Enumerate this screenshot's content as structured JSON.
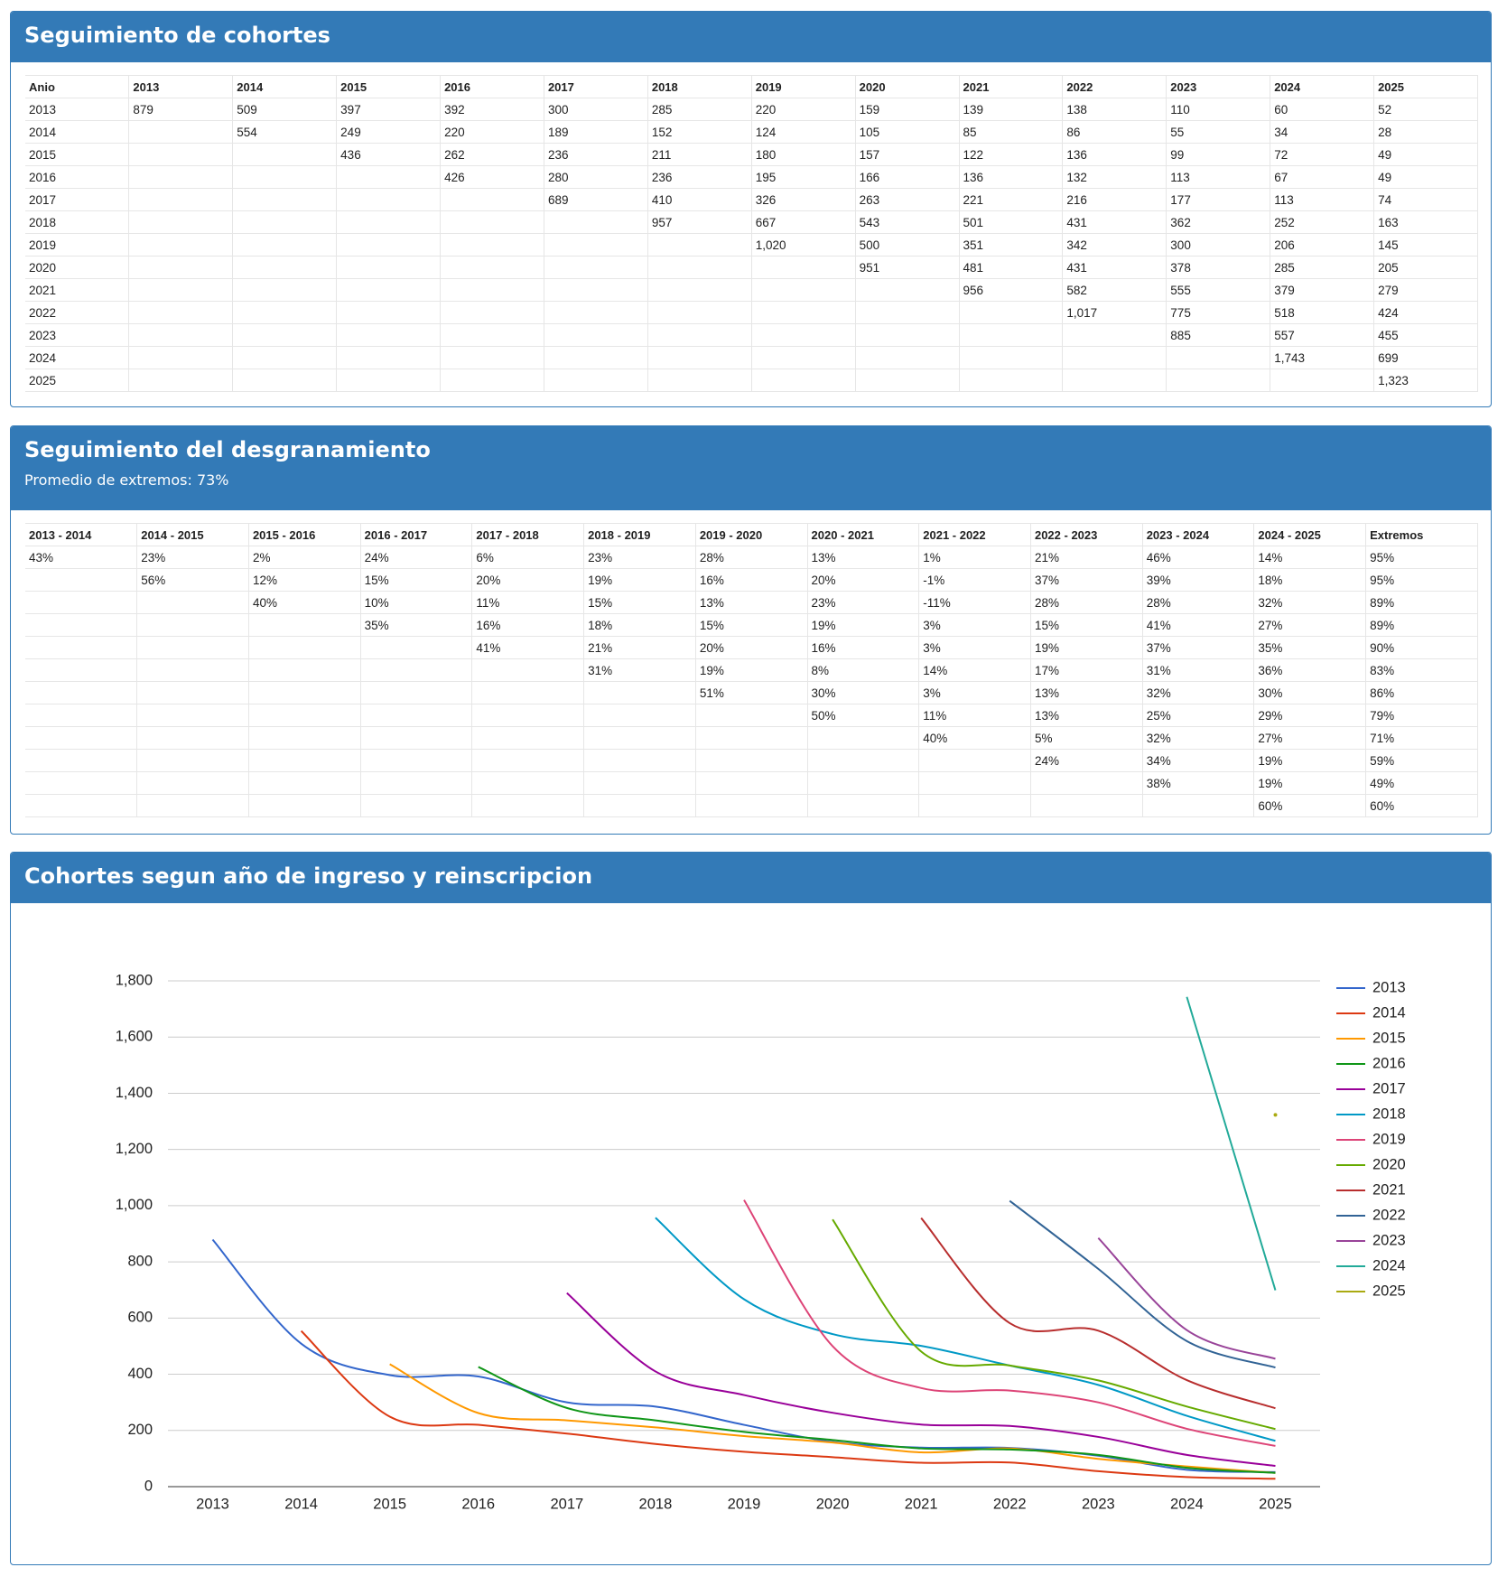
{
  "cohort_table": {
    "title": "Seguimiento de cohortes",
    "header": [
      "Anio",
      "2013",
      "2014",
      "2015",
      "2016",
      "2017",
      "2018",
      "2019",
      "2020",
      "2021",
      "2022",
      "2023",
      "2024",
      "2025"
    ],
    "rows": [
      [
        "2013",
        "879",
        "509",
        "397",
        "392",
        "300",
        "285",
        "220",
        "159",
        "139",
        "138",
        "110",
        "60",
        "52"
      ],
      [
        "2014",
        null,
        "554",
        "249",
        "220",
        "189",
        "152",
        "124",
        "105",
        "85",
        "86",
        "55",
        "34",
        "28"
      ],
      [
        "2015",
        null,
        null,
        "436",
        "262",
        "236",
        "211",
        "180",
        "157",
        "122",
        "136",
        "99",
        "72",
        "49"
      ],
      [
        "2016",
        null,
        null,
        null,
        "426",
        "280",
        "236",
        "195",
        "166",
        "136",
        "132",
        "113",
        "67",
        "49"
      ],
      [
        "2017",
        null,
        null,
        null,
        null,
        "689",
        "410",
        "326",
        "263",
        "221",
        "216",
        "177",
        "113",
        "74"
      ],
      [
        "2018",
        null,
        null,
        null,
        null,
        null,
        "957",
        "667",
        "543",
        "501",
        "431",
        "362",
        "252",
        "163"
      ],
      [
        "2019",
        null,
        null,
        null,
        null,
        null,
        null,
        "1,020",
        "500",
        "351",
        "342",
        "300",
        "206",
        "145"
      ],
      [
        "2020",
        null,
        null,
        null,
        null,
        null,
        null,
        null,
        "951",
        "481",
        "431",
        "378",
        "285",
        "205"
      ],
      [
        "2021",
        null,
        null,
        null,
        null,
        null,
        null,
        null,
        null,
        "956",
        "582",
        "555",
        "379",
        "279"
      ],
      [
        "2022",
        null,
        null,
        null,
        null,
        null,
        null,
        null,
        null,
        null,
        "1,017",
        "775",
        "518",
        "424"
      ],
      [
        "2023",
        null,
        null,
        null,
        null,
        null,
        null,
        null,
        null,
        null,
        null,
        "885",
        "557",
        "455"
      ],
      [
        "2024",
        null,
        null,
        null,
        null,
        null,
        null,
        null,
        null,
        null,
        null,
        null,
        "1,743",
        "699"
      ],
      [
        "2025",
        null,
        null,
        null,
        null,
        null,
        null,
        null,
        null,
        null,
        null,
        null,
        null,
        "1,323"
      ]
    ]
  },
  "attrition_table": {
    "title": "Seguimiento del desgranamiento",
    "subtitle": "Promedio de extremos: 73%",
    "header": [
      "2013 - 2014",
      "2014 - 2015",
      "2015 - 2016",
      "2016 - 2017",
      "2017 - 2018",
      "2018 - 2019",
      "2019 - 2020",
      "2020 - 2021",
      "2021 - 2022",
      "2022 - 2023",
      "2023 - 2024",
      "2024 - 2025",
      "Extremos"
    ],
    "rows": [
      [
        "43%",
        "23%",
        "2%",
        "24%",
        "6%",
        "23%",
        "28%",
        "13%",
        "1%",
        "21%",
        "46%",
        "14%",
        "95%"
      ],
      [
        null,
        "56%",
        "12%",
        "15%",
        "20%",
        "19%",
        "16%",
        "20%",
        "-1%",
        "37%",
        "39%",
        "18%",
        "95%"
      ],
      [
        null,
        null,
        "40%",
        "10%",
        "11%",
        "15%",
        "13%",
        "23%",
        "-11%",
        "28%",
        "28%",
        "32%",
        "89%"
      ],
      [
        null,
        null,
        null,
        "35%",
        "16%",
        "18%",
        "15%",
        "19%",
        "3%",
        "15%",
        "41%",
        "27%",
        "89%"
      ],
      [
        null,
        null,
        null,
        null,
        "41%",
        "21%",
        "20%",
        "16%",
        "3%",
        "19%",
        "37%",
        "35%",
        "90%"
      ],
      [
        null,
        null,
        null,
        null,
        null,
        "31%",
        "19%",
        "8%",
        "14%",
        "17%",
        "31%",
        "36%",
        "83%"
      ],
      [
        null,
        null,
        null,
        null,
        null,
        null,
        "51%",
        "30%",
        "3%",
        "13%",
        "32%",
        "30%",
        "86%"
      ],
      [
        null,
        null,
        null,
        null,
        null,
        null,
        null,
        "50%",
        "11%",
        "13%",
        "25%",
        "29%",
        "79%"
      ],
      [
        null,
        null,
        null,
        null,
        null,
        null,
        null,
        null,
        "40%",
        "5%",
        "32%",
        "27%",
        "71%"
      ],
      [
        null,
        null,
        null,
        null,
        null,
        null,
        null,
        null,
        null,
        "24%",
        "34%",
        "19%",
        "59%"
      ],
      [
        null,
        null,
        null,
        null,
        null,
        null,
        null,
        null,
        null,
        null,
        "38%",
        "19%",
        "49%"
      ],
      [
        null,
        null,
        null,
        null,
        null,
        null,
        null,
        null,
        null,
        null,
        null,
        "60%",
        "60%"
      ]
    ]
  },
  "chart_data": {
    "type": "line",
    "title": "Cohortes segun año de ingreso y reinscripcion",
    "categories": [
      "2013",
      "2014",
      "2015",
      "2016",
      "2017",
      "2018",
      "2019",
      "2020",
      "2021",
      "2022",
      "2023",
      "2024",
      "2025"
    ],
    "ylim": [
      0,
      1800
    ],
    "yticks": [
      0,
      200,
      400,
      600,
      800,
      {
        "value": 1000,
        "label": "1,000"
      },
      {
        "value": 1200,
        "label": "1,200"
      },
      {
        "value": 1400,
        "label": "1,400"
      },
      {
        "value": 1600,
        "label": "1,600"
      },
      {
        "value": 1800,
        "label": "1,800"
      }
    ],
    "grid": true,
    "legend": "right",
    "series": [
      {
        "name": "2013",
        "color": "#3366cc",
        "values": [
          879,
          509,
          397,
          392,
          300,
          285,
          220,
          159,
          139,
          138,
          110,
          60,
          52
        ]
      },
      {
        "name": "2014",
        "color": "#dc3912",
        "values": [
          null,
          554,
          249,
          220,
          189,
          152,
          124,
          105,
          85,
          86,
          55,
          34,
          28
        ]
      },
      {
        "name": "2015",
        "color": "#ff9900",
        "values": [
          null,
          null,
          436,
          262,
          236,
          211,
          180,
          157,
          122,
          136,
          99,
          72,
          49
        ]
      },
      {
        "name": "2016",
        "color": "#109618",
        "values": [
          null,
          null,
          null,
          426,
          280,
          236,
          195,
          166,
          136,
          132,
          113,
          67,
          49
        ]
      },
      {
        "name": "2017",
        "color": "#990099",
        "values": [
          null,
          null,
          null,
          null,
          689,
          410,
          326,
          263,
          221,
          216,
          177,
          113,
          74
        ]
      },
      {
        "name": "2018",
        "color": "#0099c6",
        "values": [
          null,
          null,
          null,
          null,
          null,
          957,
          667,
          543,
          501,
          431,
          362,
          252,
          163
        ]
      },
      {
        "name": "2019",
        "color": "#dd4477",
        "values": [
          null,
          null,
          null,
          null,
          null,
          null,
          1020,
          500,
          351,
          342,
          300,
          206,
          145
        ]
      },
      {
        "name": "2020",
        "color": "#66aa00",
        "values": [
          null,
          null,
          null,
          null,
          null,
          null,
          null,
          951,
          481,
          431,
          378,
          285,
          205
        ]
      },
      {
        "name": "2021",
        "color": "#b82e2e",
        "values": [
          null,
          null,
          null,
          null,
          null,
          null,
          null,
          null,
          956,
          582,
          555,
          379,
          279
        ]
      },
      {
        "name": "2022",
        "color": "#316395",
        "values": [
          null,
          null,
          null,
          null,
          null,
          null,
          null,
          null,
          null,
          1017,
          775,
          518,
          424
        ]
      },
      {
        "name": "2023",
        "color": "#994499",
        "values": [
          null,
          null,
          null,
          null,
          null,
          null,
          null,
          null,
          null,
          null,
          885,
          557,
          455
        ]
      },
      {
        "name": "2024",
        "color": "#22aa99",
        "values": [
          null,
          null,
          null,
          null,
          null,
          null,
          null,
          null,
          null,
          null,
          null,
          1743,
          699
        ]
      },
      {
        "name": "2025",
        "color": "#aaaa11",
        "values": [
          null,
          null,
          null,
          null,
          null,
          null,
          null,
          null,
          null,
          null,
          null,
          null,
          1323
        ]
      }
    ]
  }
}
